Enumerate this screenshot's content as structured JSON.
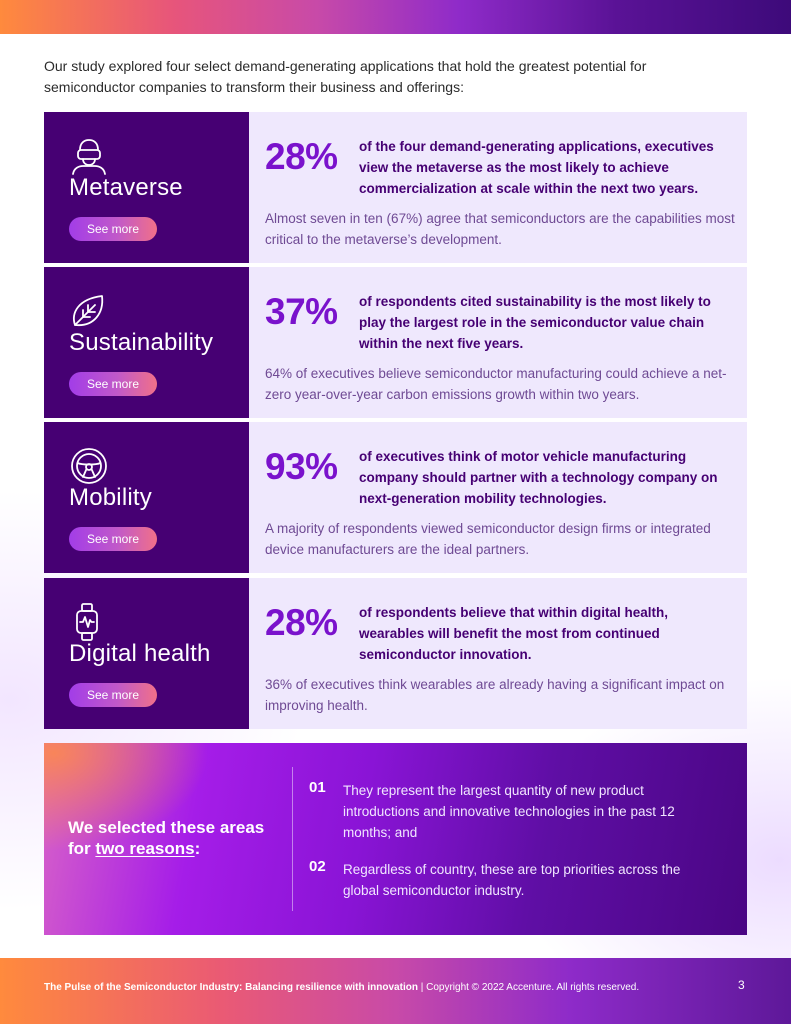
{
  "intro": "Our study explored four select demand-generating applications that hold the greatest potential for semiconductor companies to transform their business and offerings:",
  "applications": [
    {
      "icon": "vr-headset-person-icon",
      "name": "Metaverse",
      "button": "See more",
      "stat": "28%",
      "headline": "of the four demand-generating applications, executives view the metaverse as the most likely to achieve commercialization at scale within the next two years.",
      "detail": "Almost seven in ten (67%) agree that semiconductors are the capabilities most critical to the metaverse’s development."
    },
    {
      "icon": "leaf-icon",
      "name": "Sustainability",
      "button": "See more",
      "stat": "37%",
      "headline": "of respondents cited sustainability is the most likely to play the largest role in the semiconductor value chain within the next five years.",
      "detail": "64% of executives believe semiconductor manufacturing could achieve a net-zero year-over-year carbon emissions growth within two years."
    },
    {
      "icon": "steering-wheel-icon",
      "name": "Mobility",
      "button": "See more",
      "stat": "93%",
      "headline": "of executives think of motor vehicle manufacturing company should partner with a technology company on next-generation mobility technologies.",
      "detail": "A majority of respondents viewed semiconductor design firms or integrated device manufacturers are the ideal partners."
    },
    {
      "icon": "smartwatch-heartbeat-icon",
      "name": "Digital health",
      "button": "See more",
      "stat": "28%",
      "headline": "of respondents believe that within digital health, wearables will benefit the most from continued semiconductor innovation.",
      "detail": "36% of executives think wearables are already having a significant impact on improving health."
    }
  ],
  "reasons": {
    "title_prefix": "We selected these areas for",
    "title_link": "two reasons",
    "title_suffix": ":",
    "items": [
      {
        "num": "01",
        "text": "They represent the largest quantity of new product introductions and innovative technologies in the past 12 months; and"
      },
      {
        "num": "02",
        "text": "Regardless of country, these are top priorities across the global semiconductor industry."
      }
    ]
  },
  "footer": {
    "title": "The Pulse of the Semiconductor Industry: Balancing resilience with innovation",
    "copyright": " | Copyright © 2022 Accenture. All rights reserved.",
    "page": "3"
  },
  "colors": {
    "dark_purple": "#460073",
    "accent_purple": "#7a12cc",
    "light_lavender": "#efe8fd"
  }
}
